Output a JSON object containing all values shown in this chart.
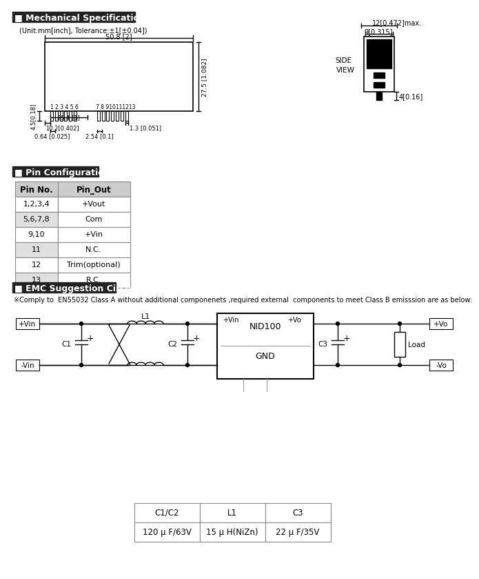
{
  "title_mech": "Mechanical Specification",
  "unit_note": "(Unit:mm[inch], Tolerance:±1[±0.04])",
  "title_pin": "Pin Configuration",
  "title_emc": "EMC Suggestion Circuit",
  "emc_note": "※Comply to  EN55032 Class A without additional componenets ,required external  components to meet Class B emisssion are as below:",
  "pin_table": {
    "headers": [
      "Pin No.",
      "Pin_Out"
    ],
    "rows": [
      [
        "1,2,3,4",
        "+Vout"
      ],
      [
        "5,6,7,8",
        "Com"
      ],
      [
        "9,10",
        "+Vin"
      ],
      [
        "11",
        "N.C."
      ],
      [
        "12",
        "Trim(optional)"
      ],
      [
        "13",
        "R.C."
      ]
    ]
  },
  "comp_table": {
    "headers": [
      "C1/C2",
      "L1",
      "C3"
    ],
    "rows": [
      [
        "120 μ F/63V",
        "15 μ H(NiZn)",
        "22 μ F/35V"
      ]
    ]
  },
  "bg_color": "#ffffff"
}
